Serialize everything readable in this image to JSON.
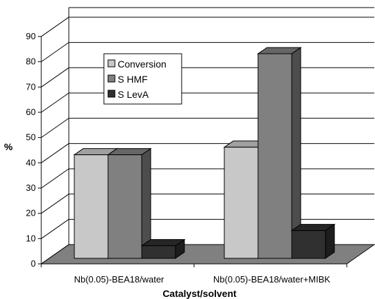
{
  "chart_data": {
    "type": "bar",
    "style": "3d-clustered-column",
    "categories": [
      "Nb(0.05)-BEA18/water",
      "Nb(0.05)-BEA18/water+MIBK"
    ],
    "series": [
      {
        "name": "Conversion",
        "values": [
          41,
          44
        ],
        "color": "#c8c8c8"
      },
      {
        "name": "S HMF",
        "values": [
          41,
          81
        ],
        "color": "#808080"
      },
      {
        "name": "S LevA",
        "values": [
          5,
          11
        ],
        "color": "#303030"
      }
    ],
    "xlabel": "Catalyst/solvent",
    "ylabel": "%",
    "ylim": [
      0,
      90
    ],
    "yticks": [
      0,
      10,
      20,
      30,
      40,
      50,
      60,
      70,
      80,
      90
    ],
    "grid": true,
    "legend_position": "upper-left"
  }
}
